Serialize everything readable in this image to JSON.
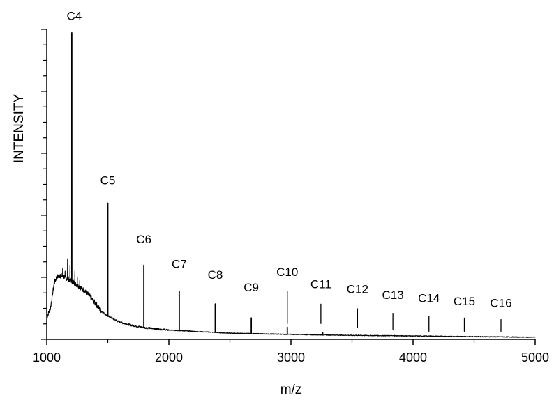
{
  "chart_data": {
    "type": "line",
    "title": "",
    "xlabel": "m/z",
    "ylabel": "INTENSITY",
    "xlim": [
      1000,
      5000
    ],
    "ylim": [
      0,
      100
    ],
    "x_ticks": [
      1000,
      2000,
      3000,
      4000,
      5000
    ],
    "y_tick_labels": false,
    "grid": false,
    "legend": "none",
    "line_color": "#000000",
    "baseline_profile": [
      [
        1000,
        7
      ],
      [
        1030,
        10
      ],
      [
        1060,
        18
      ],
      [
        1080,
        20
      ],
      [
        1100,
        20.5
      ],
      [
        1120,
        20.5
      ],
      [
        1150,
        20
      ],
      [
        1200,
        19
      ],
      [
        1250,
        17.5
      ],
      [
        1300,
        16
      ],
      [
        1350,
        14
      ],
      [
        1400,
        11.5
      ],
      [
        1450,
        9
      ],
      [
        1500,
        7.5
      ],
      [
        1600,
        5.5
      ],
      [
        1700,
        4.5
      ],
      [
        1800,
        3.8
      ],
      [
        2000,
        3
      ],
      [
        2500,
        2
      ],
      [
        3000,
        1.6
      ],
      [
        3500,
        1.3
      ],
      [
        4000,
        1.1
      ],
      [
        4500,
        0.9
      ],
      [
        5000,
        0.7
      ]
    ],
    "cluster_spikes": [
      {
        "x": 1110,
        "y": 21
      },
      {
        "x": 1130,
        "y": 23
      },
      {
        "x": 1150,
        "y": 22
      },
      {
        "x": 1170,
        "y": 26
      },
      {
        "x": 1190,
        "y": 24
      },
      {
        "x": 1230,
        "y": 22
      },
      {
        "x": 1250,
        "y": 20
      },
      {
        "x": 1270,
        "y": 19
      }
    ],
    "peaks": [
      {
        "label": "C4",
        "x": 1205,
        "y": 99
      },
      {
        "label": "C5",
        "x": 1500,
        "y": 44
      },
      {
        "label": "C6",
        "x": 1795,
        "y": 24
      },
      {
        "label": "C7",
        "x": 2085,
        "y": 15.5
      },
      {
        "label": "C8",
        "x": 2380,
        "y": 11.5
      },
      {
        "label": "C9",
        "x": 2675,
        "y": 7
      },
      {
        "label": "C10",
        "x": 2970,
        "y": 4
      },
      {
        "label": "C11",
        "x": 3260,
        "y": 2.2
      },
      {
        "label": "C12",
        "x": 3555,
        "y": 1.6
      },
      {
        "label": "C13",
        "x": 3845,
        "y": 1.4
      },
      {
        "label": "C14",
        "x": 4140,
        "y": 1.2
      },
      {
        "label": "C15",
        "x": 4430,
        "y": 1
      },
      {
        "label": "C16",
        "x": 4725,
        "y": 0.9
      }
    ],
    "label_markers": [
      {
        "label": "C10",
        "x": 2970,
        "y_top": 15.5,
        "y_bottom": 5
      },
      {
        "label": "C11",
        "x": 3245,
        "y_top": 11.5,
        "y_bottom": 5
      },
      {
        "label": "C12",
        "x": 3545,
        "y_top": 10,
        "y_bottom": 3.8
      },
      {
        "label": "C13",
        "x": 3835,
        "y_top": 8.5,
        "y_bottom": 3
      },
      {
        "label": "C14",
        "x": 4130,
        "y_top": 7.5,
        "y_bottom": 2.5
      },
      {
        "label": "C15",
        "x": 4420,
        "y_top": 7,
        "y_bottom": 2.5
      },
      {
        "label": "C16",
        "x": 4720,
        "y_top": 6.5,
        "y_bottom": 2.5
      }
    ]
  }
}
